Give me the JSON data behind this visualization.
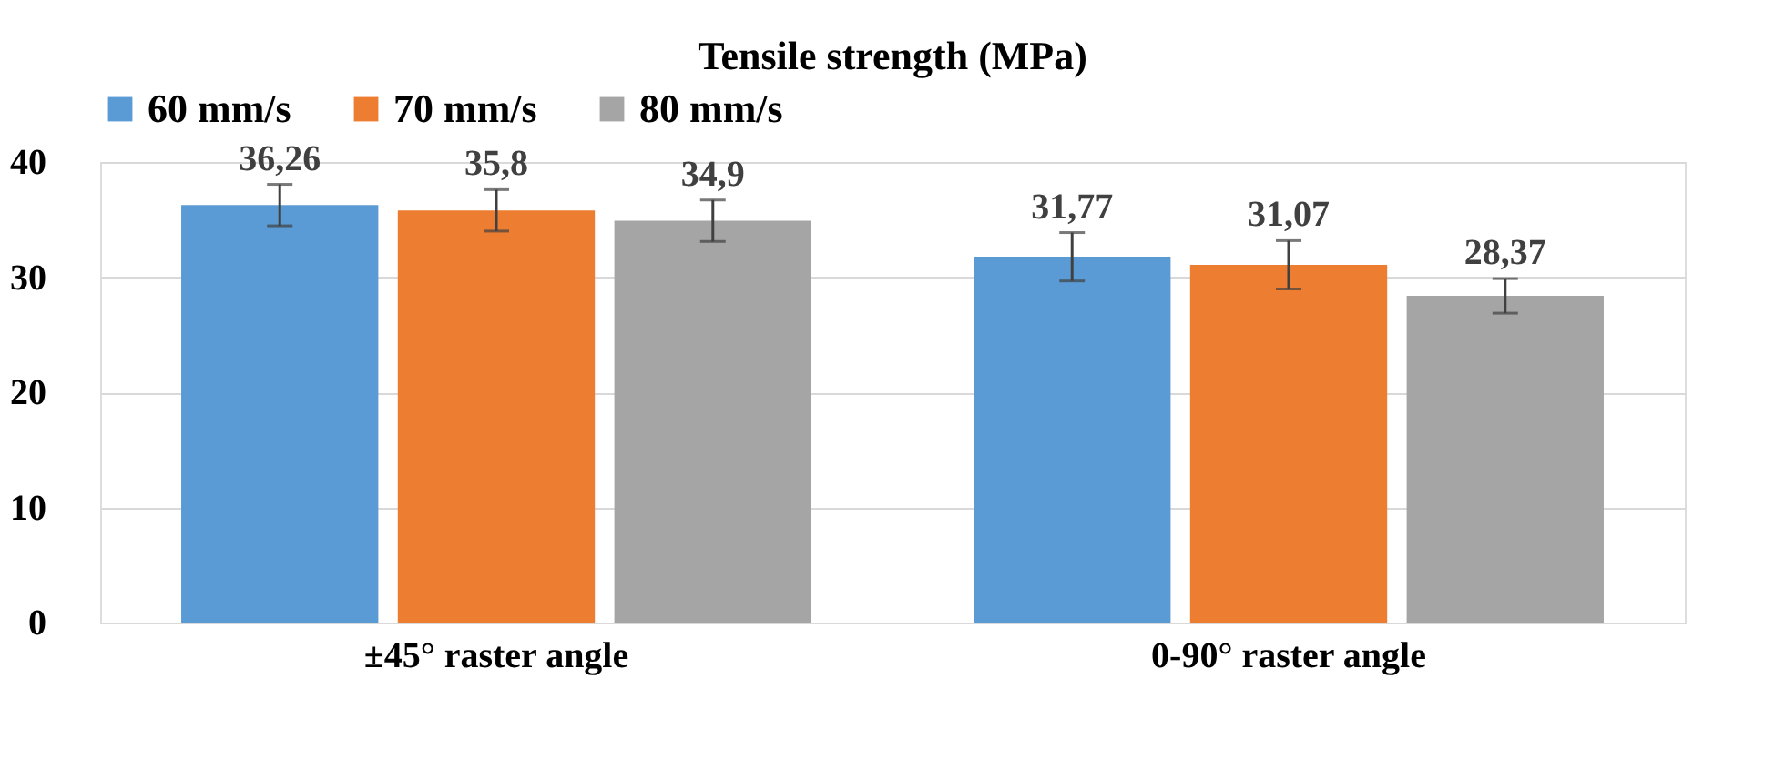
{
  "chart_data": {
    "type": "bar",
    "title": "Tensile strength (MPa)",
    "categories": [
      "±45° raster angle",
      "0-90° raster angle"
    ],
    "series": [
      {
        "name": "60 mm/s",
        "color": "#5b9bd5",
        "values": [
          36.26,
          31.77
        ],
        "errors": [
          1.8,
          2.1
        ],
        "value_labels": [
          "36,26",
          "31,77"
        ]
      },
      {
        "name": "70 mm/s",
        "color": "#ed7d31",
        "values": [
          35.8,
          31.07
        ],
        "errors": [
          1.8,
          2.1
        ],
        "value_labels": [
          "35,8",
          "31,07"
        ]
      },
      {
        "name": "80 mm/s",
        "color": "#a5a5a5",
        "values": [
          34.9,
          28.37
        ],
        "errors": [
          1.8,
          1.5
        ],
        "value_labels": [
          "34,9",
          "28,37"
        ]
      }
    ],
    "ylim": [
      0,
      40
    ],
    "yticks": [
      0,
      10,
      20,
      30,
      40
    ],
    "grid": "y",
    "legend": "top"
  }
}
